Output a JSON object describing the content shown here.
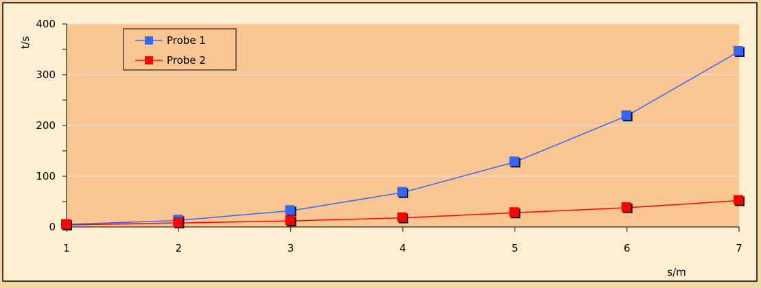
{
  "chart_data": {
    "type": "line",
    "title": "",
    "xlabel": "s/m",
    "ylabel": "t/s",
    "x": [
      1,
      2,
      3,
      4,
      5,
      6,
      7
    ],
    "xlim": [
      1,
      7
    ],
    "ylim": [
      0,
      400
    ],
    "x_ticks": [
      1,
      2,
      3,
      4,
      5,
      6,
      7
    ],
    "y_ticks": [
      0,
      100,
      200,
      300,
      400
    ],
    "grid": "horizontal",
    "legend_position": "top-left",
    "plot_background": "#f9c591",
    "frame_background": "#fdf0d2",
    "series": [
      {
        "name": "Probe 1",
        "color": "#3366ff",
        "values": [
          5,
          13,
          32,
          68,
          128,
          219,
          346
        ]
      },
      {
        "name": "Probe 2",
        "color": "#ff0000",
        "values": [
          4,
          8,
          12,
          18,
          28,
          38,
          52
        ]
      }
    ]
  }
}
